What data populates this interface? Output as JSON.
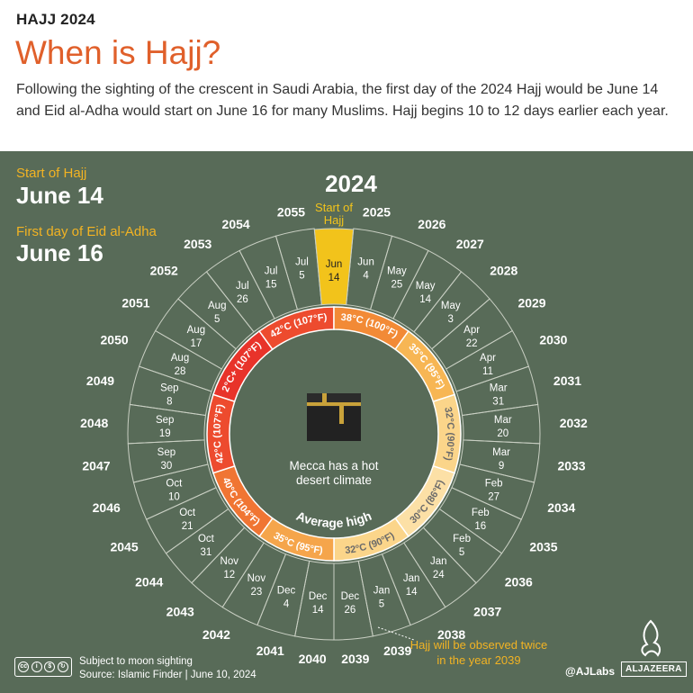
{
  "header": {
    "kicker": "HAJJ 2024",
    "title": "When is Hajj?",
    "intro": "Following the sighting of the crescent in Saudi Arabia, the first day of the 2024 Hajj would be June 14 and Eid al-Adha would start on June 16 for many Muslims. Hajj begins 10 to 12 days earlier each year."
  },
  "side": {
    "start_label": "Start of Hajj",
    "start_value": "June 14",
    "eid_label": "First day of Eid al-Adha",
    "eid_value": "June 16"
  },
  "chart_data": {
    "type": "radial-timeline",
    "highlight_year": "2024",
    "highlight_label_line1": "Start of",
    "highlight_label_line2": "Hajj",
    "center_text_line1": "Mecca has a hot",
    "center_text_line2": "desert climate",
    "temperature_label": "Average high",
    "entries": [
      {
        "year": "2024",
        "month": "Jun",
        "day": "14"
      },
      {
        "year": "2025",
        "month": "Jun",
        "day": "4"
      },
      {
        "year": "2026",
        "month": "May",
        "day": "25"
      },
      {
        "year": "2027",
        "month": "May",
        "day": "14"
      },
      {
        "year": "2028",
        "month": "May",
        "day": "3"
      },
      {
        "year": "2029",
        "month": "Apr",
        "day": "22"
      },
      {
        "year": "2030",
        "month": "Apr",
        "day": "11"
      },
      {
        "year": "2031",
        "month": "Mar",
        "day": "31"
      },
      {
        "year": "2032",
        "month": "Mar",
        "day": "20"
      },
      {
        "year": "2033",
        "month": "Mar",
        "day": "9"
      },
      {
        "year": "2034",
        "month": "Feb",
        "day": "27"
      },
      {
        "year": "2035",
        "month": "Feb",
        "day": "16"
      },
      {
        "year": "2036",
        "month": "Feb",
        "day": "5"
      },
      {
        "year": "2037",
        "month": "Jan",
        "day": "24"
      },
      {
        "year": "2038",
        "month": "Jan",
        "day": "14"
      },
      {
        "year": "2039",
        "month": "Jan",
        "day": "5"
      },
      {
        "year": "2039",
        "month": "Dec",
        "day": "26"
      },
      {
        "year": "2040",
        "month": "Dec",
        "day": "14"
      },
      {
        "year": "2041",
        "month": "Dec",
        "day": "4"
      },
      {
        "year": "2042",
        "month": "Nov",
        "day": "23"
      },
      {
        "year": "2043",
        "month": "Nov",
        "day": "12"
      },
      {
        "year": "2044",
        "month": "Oct",
        "day": "31"
      },
      {
        "year": "2045",
        "month": "Oct",
        "day": "21"
      },
      {
        "year": "2046",
        "month": "Oct",
        "day": "10"
      },
      {
        "year": "2047",
        "month": "Sep",
        "day": "30"
      },
      {
        "year": "2048",
        "month": "Sep",
        "day": "19"
      },
      {
        "year": "2049",
        "month": "Sep",
        "day": "8"
      },
      {
        "year": "2050",
        "month": "Aug",
        "day": "28"
      },
      {
        "year": "2051",
        "month": "Aug",
        "day": "17"
      },
      {
        "year": "2052",
        "month": "Aug",
        "day": "5"
      },
      {
        "year": "2053",
        "month": "Jul",
        "day": "26"
      },
      {
        "year": "2054",
        "month": "Jul",
        "day": "15"
      },
      {
        "year": "2055",
        "month": "Jul",
        "day": "5"
      }
    ],
    "temperatures": [
      {
        "c": "42°C+",
        "f": "(107°F)+",
        "color": "#e8332a"
      },
      {
        "c": "42°C",
        "f": "(107°F)",
        "color": "#ed4b2e"
      },
      {
        "c": "38°C",
        "f": "(100°F)",
        "color": "#f28a36"
      },
      {
        "c": "35°C",
        "f": "(95°F)",
        "color": "#f7b654"
      },
      {
        "c": "32°C",
        "f": "(90°F)",
        "color": "#fbd58a"
      },
      {
        "c": "30°C",
        "f": "(86°F)",
        "color": "#fce0a6"
      },
      {
        "c": "32°C",
        "f": "(90°F)",
        "color": "#fbd58a"
      },
      {
        "c": "35°C",
        "f": "(95°F)",
        "color": "#f5a54b"
      },
      {
        "c": "40°C",
        "f": "(104°F)",
        "color": "#f07533"
      },
      {
        "c": "42°C",
        "f": "(107°F)",
        "color": "#ed4b2e"
      }
    ]
  },
  "footer": {
    "line1": "Subject to moon sighting",
    "line2": "Source:  Islamic Finder   |   June 10, 2024",
    "note": "Hajj will be observed twice in the year 2039",
    "handle": "@AJLabs",
    "brand": "ALJAZEERA",
    "license": [
      "BY",
      "NC",
      "SA"
    ]
  },
  "colors": {
    "background": "#586b58",
    "accent": "#e0602b",
    "highlight": "#f2c31b",
    "note": "#f2b323"
  }
}
